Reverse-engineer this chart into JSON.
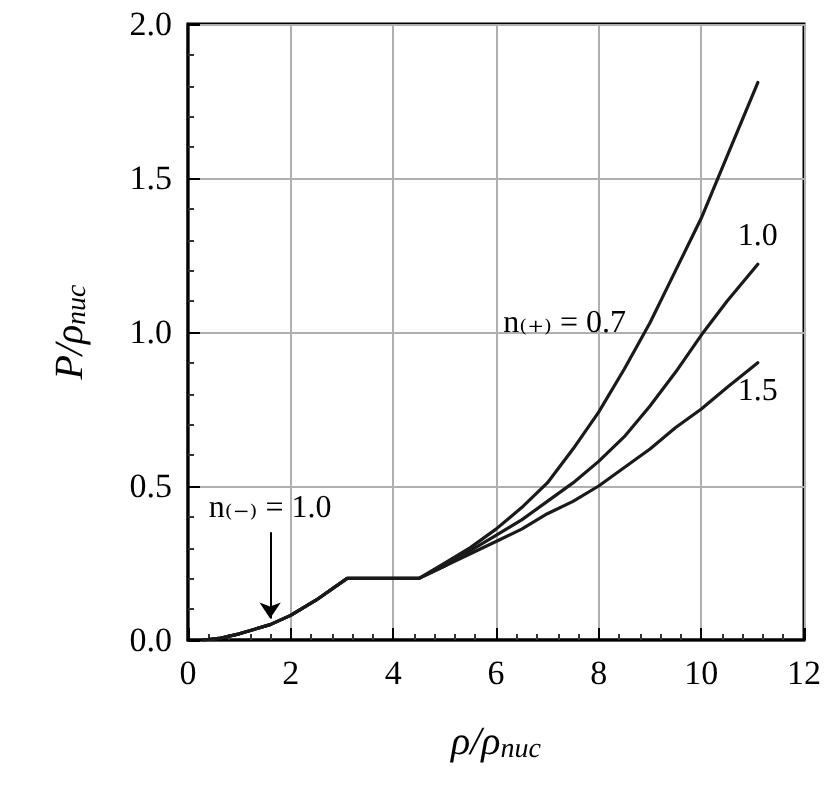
{
  "chart_data": {
    "type": "line",
    "xlabel": "ρ/ρ$_{nuc}$",
    "ylabel": "P/ρ$_{nuc}$",
    "xlim": [
      0,
      12
    ],
    "xticks": [
      0,
      2,
      4,
      6,
      8,
      10,
      12
    ],
    "ylim": [
      0,
      2
    ],
    "yticks": [
      {
        "value": 0,
        "label": "0.0"
      },
      {
        "value": 0.5,
        "label": "0.5"
      },
      {
        "value": 1,
        "label": "1.0"
      },
      {
        "value": 1.5,
        "label": "1.5"
      },
      {
        "value": 2,
        "label": "2.0"
      }
    ],
    "grid": true,
    "legend": false,
    "marker": "none",
    "line_style": "solid",
    "annotations": [
      {
        "text": "n₍₋₎ = 1.0",
        "x": 1.6,
        "y": 0.05
      }
    ],
    "series": [
      {
        "name": "n₍₊₎ = 0.7",
        "color": "#1a1a1a",
        "x": [
          0.3,
          0.6,
          1,
          1.6,
          2,
          2.5,
          3.1,
          4.5,
          5,
          5.5,
          6,
          6.5,
          7,
          7.5,
          8,
          8.5,
          9,
          9.5,
          10,
          10.5,
          11.1
        ],
        "values": [
          0,
          0.005,
          0.02,
          0.05,
          0.08,
          0.13,
          0.2,
          0.2,
          0.25,
          0.3,
          0.36,
          0.43,
          0.51,
          0.62,
          0.74,
          0.88,
          1.03,
          1.2,
          1.37,
          1.57,
          1.81
        ]
      },
      {
        "name": "1.0",
        "color": "#1a1a1a",
        "x": [
          0.3,
          0.6,
          1,
          1.6,
          2,
          2.5,
          3.1,
          4.5,
          5,
          5.5,
          6,
          6.5,
          7,
          7.5,
          8,
          8.5,
          9,
          9.5,
          10,
          10.5,
          11.1
        ],
        "values": [
          0,
          0.005,
          0.02,
          0.05,
          0.08,
          0.13,
          0.2,
          0.2,
          0.24,
          0.29,
          0.34,
          0.39,
          0.45,
          0.51,
          0.58,
          0.66,
          0.76,
          0.87,
          0.99,
          1.1,
          1.22
        ]
      },
      {
        "name": "1.5",
        "color": "#1a1a1a",
        "x": [
          0.3,
          0.6,
          1,
          1.6,
          2,
          2.5,
          3.1,
          4.5,
          5,
          5.5,
          6,
          6.5,
          7,
          7.5,
          8,
          8.5,
          9,
          9.5,
          10,
          10.5,
          11.1
        ],
        "values": [
          0,
          0.005,
          0.02,
          0.05,
          0.08,
          0.13,
          0.2,
          0.2,
          0.24,
          0.28,
          0.32,
          0.36,
          0.41,
          0.45,
          0.5,
          0.56,
          0.62,
          0.69,
          0.75,
          0.82,
          0.9
        ]
      }
    ]
  }
}
